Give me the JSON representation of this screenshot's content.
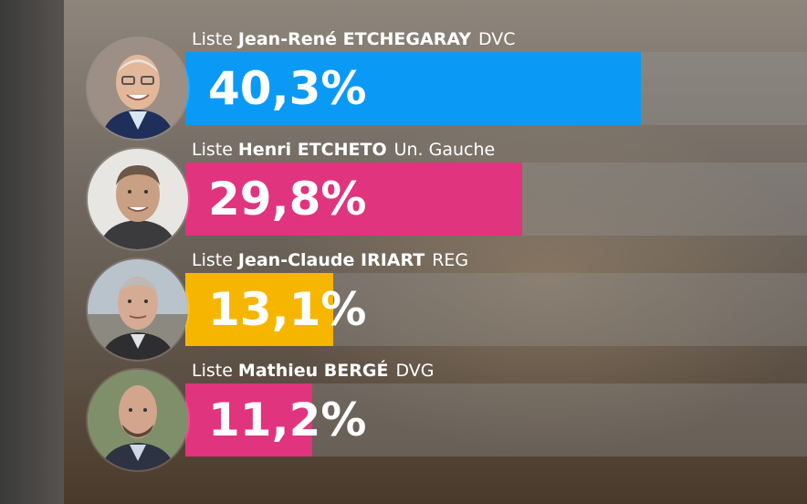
{
  "chart_data": {
    "type": "bar",
    "orientation": "horizontal",
    "unit": "%",
    "categories": [
      "Liste Jean-René ETCHEGARAY DVC",
      "Liste Henri ETCHETO Un. Gauche",
      "Liste Jean-Claude IRIART REG",
      "Liste Mathieu BERGÉ DVG"
    ],
    "values": [
      40.3,
      29.8,
      13.1,
      11.2
    ],
    "xlim": [
      0,
      55
    ]
  },
  "candidates": [
    {
      "prefix": "Liste",
      "name": "Jean-René ETCHEGARAY",
      "party": "DVC",
      "value_text": "40,3%",
      "color": "#0a9af5"
    },
    {
      "prefix": "Liste",
      "name": "Henri ETCHETO",
      "party": "Un. Gauche",
      "value_text": "29,8%",
      "color": "#e0347e"
    },
    {
      "prefix": "Liste",
      "name": "Jean-Claude IRIART",
      "party": "REG",
      "value_text": "13,1%",
      "color": "#f6b600"
    },
    {
      "prefix": "Liste",
      "name": "Mathieu BERGÉ",
      "party": "DVG",
      "value_text": "11,2%",
      "color": "#e0347e"
    }
  ]
}
